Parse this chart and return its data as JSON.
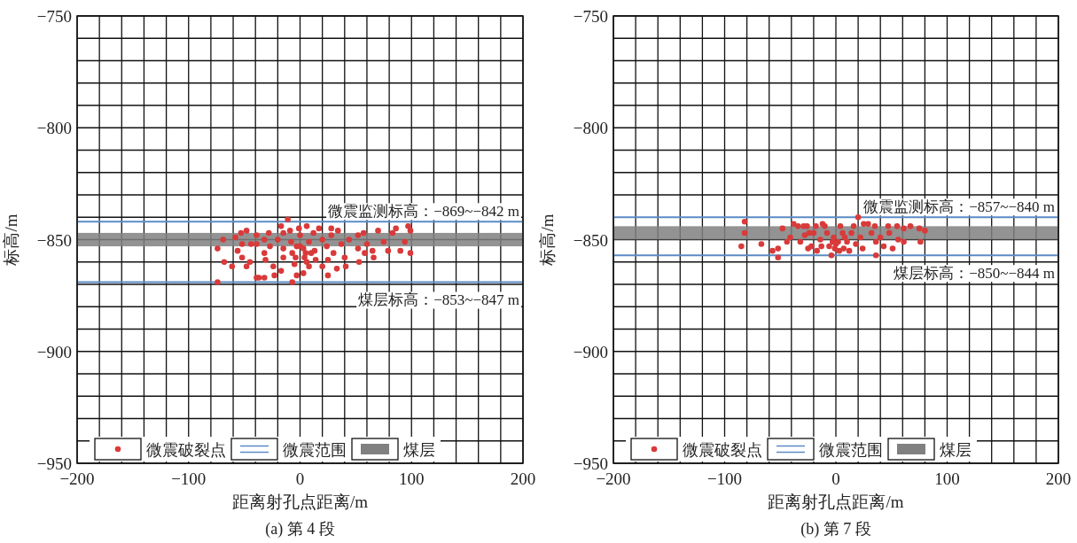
{
  "chart_data": [
    {
      "type": "scatter",
      "title": "(a) 第 4 段",
      "xlabel": "距离射孔点距离/m",
      "ylabel": "标高/m",
      "xlim": [
        -200,
        200
      ],
      "ylim": [
        -950,
        -750
      ],
      "xticks": [
        -200,
        {
          "value": -180,
          "label": null
        },
        {
          "value": -160,
          "label": null
        },
        {
          "value": -140,
          "label": null
        },
        {
          "value": -120,
          "label": null
        },
        -100,
        {
          "value": -80,
          "label": null
        },
        {
          "value": -60,
          "label": null
        },
        {
          "value": -40,
          "label": null
        },
        {
          "value": -20,
          "label": null
        },
        0,
        {
          "value": 20,
          "label": null
        },
        {
          "value": 40,
          "label": null
        },
        {
          "value": 60,
          "label": null
        },
        {
          "value": 80,
          "label": null
        },
        100,
        {
          "value": 120,
          "label": null
        },
        {
          "value": 140,
          "label": null
        },
        {
          "value": 160,
          "label": null
        },
        {
          "value": 180,
          "label": null
        },
        200
      ],
      "yticks": [
        -950,
        {
          "value": -940,
          "label": null
        },
        {
          "value": -930,
          "label": null
        },
        {
          "value": -920,
          "label": null
        },
        {
          "value": -910,
          "label": null
        },
        -900,
        {
          "value": -890,
          "label": null
        },
        {
          "value": -880,
          "label": null
        },
        {
          "value": -870,
          "label": null
        },
        {
          "value": -860,
          "label": null
        },
        -850,
        {
          "value": -840,
          "label": null
        },
        {
          "value": -830,
          "label": null
        },
        {
          "value": -820,
          "label": null
        },
        {
          "value": -810,
          "label": null
        },
        -800,
        {
          "value": -790,
          "label": null
        },
        {
          "value": -780,
          "label": null
        },
        {
          "value": -770,
          "label": null
        },
        {
          "value": -760,
          "label": null
        },
        -750
      ],
      "grid": true,
      "legend": "bottom",
      "marker": "circle",
      "series": [
        {
          "name": "微震破裂点",
          "color": "#d93a3a",
          "x": [
            -74,
            -69,
            -74,
            -68,
            -61,
            -58,
            -53,
            -48,
            -52,
            -56,
            -52,
            -45,
            -44,
            -48,
            -39,
            -39,
            -39,
            -32,
            -32,
            -28,
            -31,
            -27,
            -24,
            -23,
            -20,
            -17,
            -15,
            -11,
            -15,
            -15,
            -9,
            -8,
            -7,
            -5,
            -3,
            -7,
            -1,
            0,
            0,
            4,
            6,
            8,
            8,
            12,
            13,
            14,
            17,
            20,
            20,
            24,
            25,
            28,
            28,
            30,
            33,
            34,
            37,
            40,
            41,
            44,
            52,
            52,
            53,
            57,
            58,
            60,
            65,
            66,
            70,
            75,
            79,
            83,
            86,
            90,
            94,
            97,
            99,
            99,
            -37,
            -32,
            -17,
            3,
            6,
            3,
            5,
            -4,
            10,
            -3,
            25
          ],
          "values": [
            -854,
            -850,
            -869,
            -860,
            -862,
            -849,
            -847,
            -846,
            -852,
            -855,
            -858,
            -860,
            -852,
            -862,
            -867,
            -848,
            -852,
            -850,
            -856,
            -847,
            -859,
            -853,
            -862,
            -866,
            -850,
            -844,
            -847,
            -841,
            -854,
            -858,
            -846,
            -851,
            -856,
            -861,
            -866,
            -869,
            -845,
            -848,
            -853,
            -858,
            -844,
            -851,
            -862,
            -847,
            -855,
            -859,
            -845,
            -850,
            -862,
            -853,
            -859,
            -845,
            -848,
            -856,
            -863,
            -846,
            -852,
            -858,
            -862,
            -850,
            -848,
            -854,
            -860,
            -847,
            -856,
            -852,
            -855,
            -858,
            -846,
            -851,
            -855,
            -847,
            -845,
            -855,
            -851,
            -844,
            -846,
            -856,
            -867,
            -867,
            -864,
            -865,
            -860,
            -854,
            -856,
            -858,
            -856,
            -853,
            -866
          ]
        }
      ],
      "ref_lines": [
        {
          "axis": "y",
          "value": -842,
          "label": "微震范围",
          "color": "#5b8bc4"
        },
        {
          "axis": "y",
          "value": -869,
          "color": "#5b8bc4"
        }
      ],
      "bands": [
        {
          "axis": "y",
          "from": -853,
          "to": -847,
          "label": "煤层",
          "color": "#808080"
        }
      ],
      "annotations": [
        {
          "text": "微震监测标高：−869~−842 m",
          "y": -842
        },
        {
          "text": "煤层标高：−853~−847 m",
          "y": -869
        }
      ]
    },
    {
      "type": "scatter",
      "title": "(b) 第 7 段",
      "xlabel": "距离射孔点距离/m",
      "ylabel": "标高/m",
      "xlim": [
        -200,
        200
      ],
      "ylim": [
        -950,
        -750
      ],
      "xticks": [
        -200,
        {
          "value": -180,
          "label": null
        },
        {
          "value": -160,
          "label": null
        },
        {
          "value": -140,
          "label": null
        },
        {
          "value": -120,
          "label": null
        },
        -100,
        {
          "value": -80,
          "label": null
        },
        {
          "value": -60,
          "label": null
        },
        {
          "value": -40,
          "label": null
        },
        {
          "value": -20,
          "label": null
        },
        0,
        {
          "value": 20,
          "label": null
        },
        {
          "value": 40,
          "label": null
        },
        {
          "value": 60,
          "label": null
        },
        {
          "value": 80,
          "label": null
        },
        100,
        {
          "value": 120,
          "label": null
        },
        {
          "value": 140,
          "label": null
        },
        {
          "value": 160,
          "label": null
        },
        {
          "value": 180,
          "label": null
        },
        200
      ],
      "yticks": [
        -950,
        {
          "value": -940,
          "label": null
        },
        {
          "value": -930,
          "label": null
        },
        {
          "value": -920,
          "label": null
        },
        {
          "value": -910,
          "label": null
        },
        -900,
        {
          "value": -890,
          "label": null
        },
        {
          "value": -880,
          "label": null
        },
        {
          "value": -870,
          "label": null
        },
        {
          "value": -860,
          "label": null
        },
        -850,
        {
          "value": -840,
          "label": null
        },
        {
          "value": -830,
          "label": null
        },
        {
          "value": -820,
          "label": null
        },
        {
          "value": -810,
          "label": null
        },
        -800,
        {
          "value": -790,
          "label": null
        },
        {
          "value": -780,
          "label": null
        },
        {
          "value": -770,
          "label": null
        },
        {
          "value": -760,
          "label": null
        },
        -750
      ],
      "grid": true,
      "legend": "bottom",
      "marker": "circle",
      "series": [
        {
          "name": "微震破裂点",
          "color": "#d93a3a",
          "x": [
            -82,
            -82,
            -85,
            -67,
            -57,
            -52,
            -52,
            -48,
            -44,
            -41,
            -38,
            -34,
            -32,
            -29,
            -26,
            -28,
            -25,
            -22,
            -20,
            -18,
            -17,
            -14,
            -12,
            -10,
            -8,
            -6,
            -4,
            -2,
            2,
            4,
            6,
            7,
            10,
            12,
            16,
            18,
            20,
            22,
            24,
            25,
            29,
            32,
            35,
            36,
            36,
            40,
            43,
            47,
            48,
            51,
            55,
            56,
            61,
            61,
            67,
            75,
            76,
            80,
            -1,
            -13,
            -24,
            14,
            0,
            3,
            -3,
            8
          ],
          "values": [
            -842,
            -847,
            -853,
            -852,
            -855,
            -854,
            -858,
            -845,
            -851,
            -849,
            -843,
            -844,
            -851,
            -844,
            -844,
            -848,
            -854,
            -853,
            -847,
            -844,
            -855,
            -850,
            -843,
            -844,
            -847,
            -853,
            -857,
            -849,
            -851,
            -844,
            -847,
            -854,
            -851,
            -855,
            -844,
            -852,
            -840,
            -849,
            -854,
            -843,
            -843,
            -847,
            -844,
            -851,
            -857,
            -849,
            -853,
            -844,
            -847,
            -854,
            -844,
            -850,
            -851,
            -845,
            -844,
            -845,
            -851,
            -846,
            -854,
            -853,
            -847,
            -847,
            -852,
            -855,
            -851,
            -849
          ]
        }
      ],
      "ref_lines": [
        {
          "axis": "y",
          "value": -840,
          "label": "微震范围",
          "color": "#5b8bc4"
        },
        {
          "axis": "y",
          "value": -857,
          "color": "#5b8bc4"
        }
      ],
      "bands": [
        {
          "axis": "y",
          "from": -850,
          "to": -844,
          "label": "煤层",
          "color": "#808080"
        }
      ],
      "annotations": [
        {
          "text": "微震监测标高：−857~−840 m",
          "y": -840
        },
        {
          "text": "煤层标高：−850~−844 m",
          "y": -857
        }
      ]
    }
  ]
}
